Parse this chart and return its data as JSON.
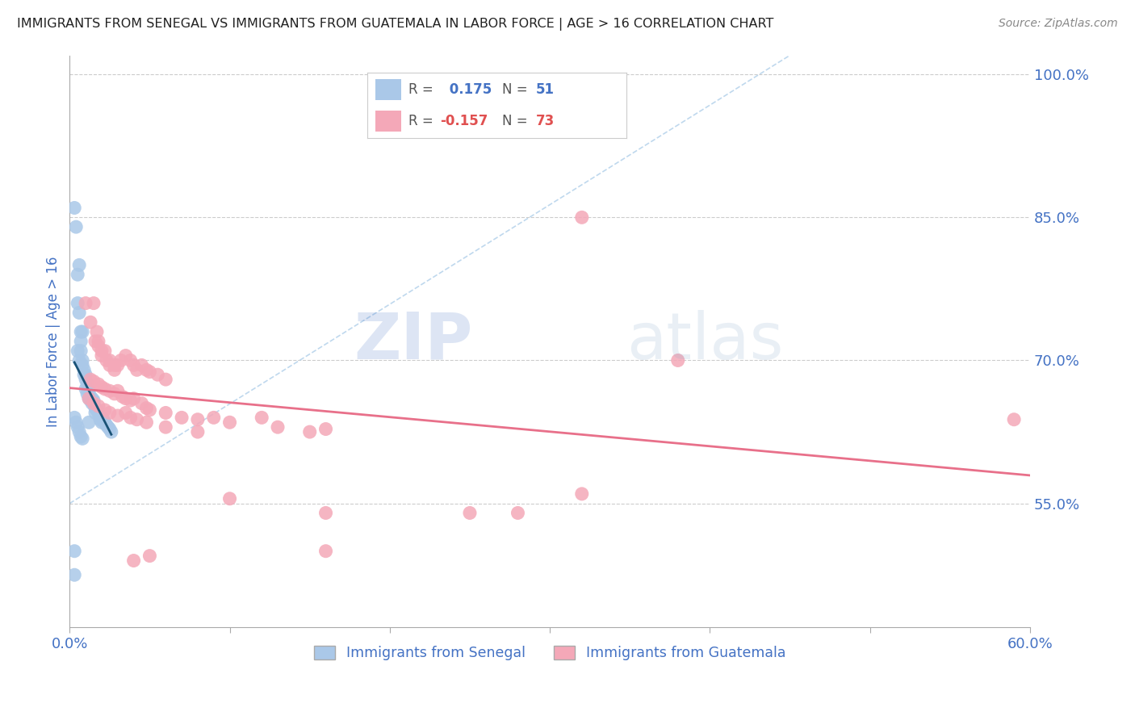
{
  "title": "IMMIGRANTS FROM SENEGAL VS IMMIGRANTS FROM GUATEMALA IN LABOR FORCE | AGE > 16 CORRELATION CHART",
  "source": "Source: ZipAtlas.com",
  "ylabel": "In Labor Force | Age > 16",
  "xlim": [
    0.0,
    0.6
  ],
  "ylim": [
    0.42,
    1.02
  ],
  "yticks": [
    0.55,
    0.7,
    0.85,
    1.0
  ],
  "ytick_labels": [
    "55.0%",
    "70.0%",
    "85.0%",
    "100.0%"
  ],
  "xtick_left_label": "0.0%",
  "xtick_right_label": "60.0%",
  "senegal_color": "#aac8e8",
  "guatemala_color": "#f4a8b8",
  "senegal_line_color": "#1a5276",
  "guatemala_line_color": "#e8708a",
  "diagonal_line_color": "#b8d4ec",
  "R_senegal": 0.175,
  "N_senegal": 51,
  "R_guatemala": -0.157,
  "N_guatemala": 73,
  "legend_label_senegal": "Immigrants from Senegal",
  "legend_label_guatemala": "Immigrants from Guatemala",
  "watermark_zip": "ZIP",
  "watermark_atlas": "atlas",
  "title_color": "#222222",
  "axis_label_color": "#4472c4",
  "tick_label_color": "#4472c4",
  "background_color": "#ffffff",
  "senegal_points": [
    [
      0.003,
      0.86
    ],
    [
      0.004,
      0.84
    ],
    [
      0.005,
      0.79
    ],
    [
      0.005,
      0.76
    ],
    [
      0.006,
      0.75
    ],
    [
      0.006,
      0.8
    ],
    [
      0.007,
      0.73
    ],
    [
      0.008,
      0.73
    ],
    [
      0.005,
      0.71
    ],
    [
      0.006,
      0.7
    ],
    [
      0.007,
      0.72
    ],
    [
      0.007,
      0.71
    ],
    [
      0.008,
      0.7
    ],
    [
      0.008,
      0.695
    ],
    [
      0.009,
      0.69
    ],
    [
      0.009,
      0.685
    ],
    [
      0.01,
      0.68
    ],
    [
      0.01,
      0.685
    ],
    [
      0.01,
      0.67
    ],
    [
      0.011,
      0.675
    ],
    [
      0.011,
      0.665
    ],
    [
      0.012,
      0.668
    ],
    [
      0.012,
      0.66
    ],
    [
      0.013,
      0.662
    ],
    [
      0.013,
      0.658
    ],
    [
      0.014,
      0.66
    ],
    [
      0.014,
      0.655
    ],
    [
      0.015,
      0.658
    ],
    [
      0.016,
      0.65
    ],
    [
      0.016,
      0.645
    ],
    [
      0.017,
      0.648
    ],
    [
      0.018,
      0.645
    ],
    [
      0.019,
      0.642
    ],
    [
      0.019,
      0.638
    ],
    [
      0.02,
      0.64
    ],
    [
      0.02,
      0.635
    ],
    [
      0.021,
      0.638
    ],
    [
      0.022,
      0.635
    ],
    [
      0.023,
      0.632
    ],
    [
      0.024,
      0.63
    ],
    [
      0.025,
      0.628
    ],
    [
      0.026,
      0.625
    ],
    [
      0.003,
      0.64
    ],
    [
      0.004,
      0.635
    ],
    [
      0.005,
      0.63
    ],
    [
      0.006,
      0.625
    ],
    [
      0.007,
      0.62
    ],
    [
      0.008,
      0.618
    ],
    [
      0.003,
      0.475
    ],
    [
      0.003,
      0.5
    ],
    [
      0.012,
      0.635
    ]
  ],
  "guatemala_points": [
    [
      0.01,
      0.76
    ],
    [
      0.013,
      0.74
    ],
    [
      0.015,
      0.76
    ],
    [
      0.016,
      0.72
    ],
    [
      0.017,
      0.73
    ],
    [
      0.018,
      0.72
    ],
    [
      0.018,
      0.715
    ],
    [
      0.02,
      0.71
    ],
    [
      0.02,
      0.705
    ],
    [
      0.022,
      0.71
    ],
    [
      0.023,
      0.7
    ],
    [
      0.025,
      0.695
    ],
    [
      0.025,
      0.7
    ],
    [
      0.028,
      0.69
    ],
    [
      0.028,
      0.695
    ],
    [
      0.03,
      0.695
    ],
    [
      0.032,
      0.7
    ],
    [
      0.035,
      0.705
    ],
    [
      0.038,
      0.7
    ],
    [
      0.04,
      0.695
    ],
    [
      0.042,
      0.69
    ],
    [
      0.045,
      0.695
    ],
    [
      0.048,
      0.69
    ],
    [
      0.05,
      0.688
    ],
    [
      0.055,
      0.685
    ],
    [
      0.06,
      0.68
    ],
    [
      0.013,
      0.68
    ],
    [
      0.015,
      0.678
    ],
    [
      0.018,
      0.675
    ],
    [
      0.02,
      0.672
    ],
    [
      0.022,
      0.67
    ],
    [
      0.025,
      0.668
    ],
    [
      0.028,
      0.665
    ],
    [
      0.03,
      0.668
    ],
    [
      0.033,
      0.662
    ],
    [
      0.035,
      0.66
    ],
    [
      0.038,
      0.658
    ],
    [
      0.04,
      0.66
    ],
    [
      0.045,
      0.655
    ],
    [
      0.048,
      0.65
    ],
    [
      0.05,
      0.648
    ],
    [
      0.06,
      0.645
    ],
    [
      0.07,
      0.64
    ],
    [
      0.08,
      0.638
    ],
    [
      0.09,
      0.64
    ],
    [
      0.1,
      0.635
    ],
    [
      0.12,
      0.64
    ],
    [
      0.13,
      0.63
    ],
    [
      0.15,
      0.625
    ],
    [
      0.16,
      0.628
    ],
    [
      0.012,
      0.66
    ],
    [
      0.015,
      0.655
    ],
    [
      0.018,
      0.652
    ],
    [
      0.022,
      0.648
    ],
    [
      0.025,
      0.645
    ],
    [
      0.03,
      0.642
    ],
    [
      0.035,
      0.645
    ],
    [
      0.038,
      0.64
    ],
    [
      0.042,
      0.638
    ],
    [
      0.048,
      0.635
    ],
    [
      0.06,
      0.63
    ],
    [
      0.08,
      0.625
    ],
    [
      0.1,
      0.555
    ],
    [
      0.16,
      0.54
    ],
    [
      0.28,
      0.54
    ],
    [
      0.32,
      0.56
    ],
    [
      0.38,
      0.7
    ],
    [
      0.04,
      0.49
    ],
    [
      0.05,
      0.495
    ],
    [
      0.16,
      0.5
    ],
    [
      0.25,
      0.54
    ],
    [
      0.32,
      0.85
    ],
    [
      0.59,
      0.638
    ]
  ]
}
